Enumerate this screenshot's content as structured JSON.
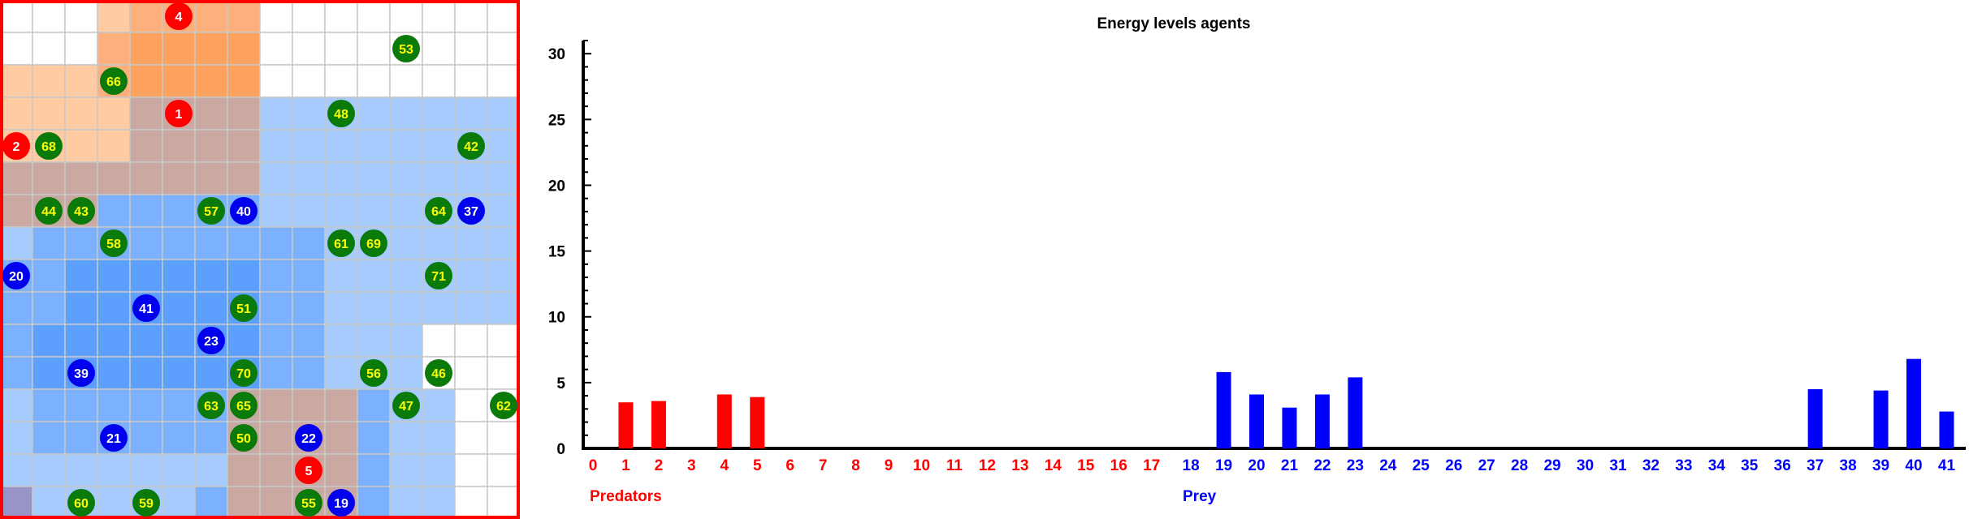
{
  "grid": {
    "rows": 16,
    "cols": 16,
    "colors": {
      "gridline": "#c8c8c8",
      "border": "#ff0000",
      "predator_light": "#fecba3",
      "predator_mid": "#fdb07c",
      "predator_strong": "#fda15f",
      "prey_light": "#a6cbfd",
      "prey_mid": "#7bb1fd",
      "prey_strong": "#5d9ffd",
      "overlap": "#caa9a2",
      "overlap_purple": "#9a95c8",
      "agent_predator": "#ff0000",
      "agent_prey": "#0000ee",
      "agent_food": "#0a7a0a",
      "label_yellow": "#ffff00",
      "label_white": "#ffffff"
    },
    "agents": [
      {
        "id": "4",
        "kind": "predator",
        "row": 0,
        "col": 5
      },
      {
        "id": "53",
        "kind": "food",
        "row": 1,
        "col": 12
      },
      {
        "id": "66",
        "kind": "food",
        "row": 2,
        "col": 3
      },
      {
        "id": "1",
        "kind": "predator",
        "row": 3,
        "col": 5
      },
      {
        "id": "48",
        "kind": "food",
        "row": 3,
        "col": 10
      },
      {
        "id": "2",
        "kind": "predator",
        "row": 4,
        "col": 0
      },
      {
        "id": "68",
        "kind": "food",
        "row": 4,
        "col": 1
      },
      {
        "id": "42",
        "kind": "food",
        "row": 4,
        "col": 14
      },
      {
        "id": "44",
        "kind": "food",
        "row": 6,
        "col": 1
      },
      {
        "id": "43",
        "kind": "food",
        "row": 6,
        "col": 2
      },
      {
        "id": "57",
        "kind": "food",
        "row": 6,
        "col": 6
      },
      {
        "id": "40",
        "kind": "prey",
        "row": 6,
        "col": 7
      },
      {
        "id": "64",
        "kind": "food",
        "row": 6,
        "col": 13
      },
      {
        "id": "37",
        "kind": "prey",
        "row": 6,
        "col": 14
      },
      {
        "id": "58",
        "kind": "food",
        "row": 7,
        "col": 3
      },
      {
        "id": "61",
        "kind": "food",
        "row": 7,
        "col": 10
      },
      {
        "id": "69",
        "kind": "food",
        "row": 7,
        "col": 11
      },
      {
        "id": "20",
        "kind": "prey",
        "row": 8,
        "col": 0
      },
      {
        "id": "71",
        "kind": "food",
        "row": 8,
        "col": 13
      },
      {
        "id": "41",
        "kind": "prey",
        "row": 9,
        "col": 4
      },
      {
        "id": "51",
        "kind": "food",
        "row": 9,
        "col": 7
      },
      {
        "id": "23",
        "kind": "prey",
        "row": 10,
        "col": 6
      },
      {
        "id": "39",
        "kind": "prey",
        "row": 11,
        "col": 2
      },
      {
        "id": "70",
        "kind": "food",
        "row": 11,
        "col": 7
      },
      {
        "id": "56",
        "kind": "food",
        "row": 11,
        "col": 11
      },
      {
        "id": "46",
        "kind": "food",
        "row": 11,
        "col": 13
      },
      {
        "id": "63",
        "kind": "food",
        "row": 12,
        "col": 6
      },
      {
        "id": "65",
        "kind": "food",
        "row": 12,
        "col": 7
      },
      {
        "id": "47",
        "kind": "food",
        "row": 12,
        "col": 12
      },
      {
        "id": "62",
        "kind": "food",
        "row": 12,
        "col": 15
      },
      {
        "id": "21",
        "kind": "prey",
        "row": 13,
        "col": 3
      },
      {
        "id": "50",
        "kind": "food",
        "row": 13,
        "col": 7
      },
      {
        "id": "22",
        "kind": "prey",
        "row": 13,
        "col": 9
      },
      {
        "id": "5",
        "kind": "predator",
        "row": 14,
        "col": 9
      },
      {
        "id": "60",
        "kind": "food",
        "row": 15,
        "col": 2
      },
      {
        "id": "59",
        "kind": "food",
        "row": 15,
        "col": 4
      },
      {
        "id": "55",
        "kind": "food",
        "row": 15,
        "col": 9
      },
      {
        "id": "19",
        "kind": "prey",
        "row": 15,
        "col": 10
      }
    ]
  },
  "chart_data": {
    "type": "bar",
    "title": "Energy levels agents",
    "ylim": [
      0,
      31
    ],
    "yticks": [
      0,
      5,
      10,
      15,
      20,
      25,
      30
    ],
    "grid": false,
    "categories": [
      "0",
      "1",
      "2",
      "3",
      "4",
      "5",
      "6",
      "7",
      "8",
      "9",
      "10",
      "11",
      "12",
      "13",
      "14",
      "15",
      "16",
      "17",
      "18",
      "19",
      "20",
      "21",
      "22",
      "23",
      "24",
      "25",
      "26",
      "27",
      "28",
      "29",
      "30",
      "31",
      "32",
      "33",
      "34",
      "35",
      "36",
      "37",
      "38",
      "39",
      "40",
      "41"
    ],
    "series": [
      {
        "name": "Predators",
        "color": "#ff0000",
        "values": [
          0,
          3.5,
          3.6,
          0,
          4.1,
          3.9,
          0,
          0,
          0,
          0,
          0,
          0,
          0,
          0,
          0,
          0,
          0,
          0,
          null,
          null,
          null,
          null,
          null,
          null,
          null,
          null,
          null,
          null,
          null,
          null,
          null,
          null,
          null,
          null,
          null,
          null,
          null,
          null,
          null,
          null,
          null,
          null
        ]
      },
      {
        "name": "Prey",
        "color": "#0000ff",
        "values": [
          null,
          null,
          null,
          null,
          null,
          null,
          null,
          null,
          null,
          null,
          null,
          null,
          null,
          null,
          null,
          null,
          null,
          null,
          0,
          5.8,
          4.1,
          3.1,
          4.1,
          5.4,
          0,
          0,
          0,
          0,
          0,
          0,
          0,
          0,
          0,
          0,
          0,
          0,
          0,
          4.5,
          0,
          4.4,
          6.8,
          2.8
        ]
      }
    ],
    "legend": {
      "predators": "Predators",
      "prey": "Prey"
    }
  }
}
